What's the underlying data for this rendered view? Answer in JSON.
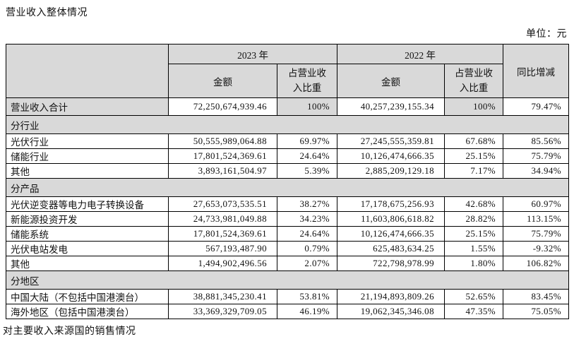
{
  "page": {
    "title": "营业收入整体情况",
    "unit_label": "单位：元",
    "footer": "对主要收入来源国的销售情况"
  },
  "table": {
    "header": {
      "year_2023": "2023 年",
      "year_2022": "2022 年",
      "amount": "金额",
      "pct_of_revenue": "占营业收入比重",
      "yoy": "同比增减"
    },
    "rows": [
      {
        "type": "total",
        "label": "营业收入合计",
        "a2023": "72,250,674,939.46",
        "p2023": "100%",
        "a2022": "40,257,239,155.34",
        "p2022": "100%",
        "yoy": "79.47%"
      },
      {
        "type": "section",
        "label": "分行业"
      },
      {
        "type": "data",
        "label": "光伏行业",
        "a2023": "50,555,989,064.88",
        "p2023": "69.97%",
        "a2022": "27,245,555,359.81",
        "p2022": "67.68%",
        "yoy": "85.56%"
      },
      {
        "type": "data",
        "label": "储能行业",
        "a2023": "17,801,524,369.61",
        "p2023": "24.64%",
        "a2022": "10,126,474,666.35",
        "p2022": "25.15%",
        "yoy": "75.79%"
      },
      {
        "type": "data",
        "label": "其他",
        "a2023": "3,893,161,504.97",
        "p2023": "5.39%",
        "a2022": "2,885,209,129.18",
        "p2022": "7.17%",
        "yoy": "34.94%"
      },
      {
        "type": "section",
        "label": "分产品"
      },
      {
        "type": "data",
        "label": "光伏逆变器等电力电子转换设备",
        "a2023": "27,653,073,535.51",
        "p2023": "38.27%",
        "a2022": "17,178,675,256.93",
        "p2022": "42.68%",
        "yoy": "60.97%"
      },
      {
        "type": "data",
        "label": "新能源投资开发",
        "a2023": "24,733,981,049.88",
        "p2023": "34.23%",
        "a2022": "11,603,806,618.82",
        "p2022": "28.82%",
        "yoy": "113.15%"
      },
      {
        "type": "data",
        "label": "储能系统",
        "a2023": "17,801,524,369.61",
        "p2023": "24.64%",
        "a2022": "10,126,474,666.35",
        "p2022": "25.15%",
        "yoy": "75.79%"
      },
      {
        "type": "data",
        "label": "光伏电站发电",
        "a2023": "567,193,487.90",
        "p2023": "0.79%",
        "a2022": "625,483,634.25",
        "p2022": "1.55%",
        "yoy": "-9.32%"
      },
      {
        "type": "data",
        "label": "其他",
        "a2023": "1,494,902,496.56",
        "p2023": "2.07%",
        "a2022": "722,798,978.99",
        "p2022": "1.80%",
        "yoy": "106.82%"
      },
      {
        "type": "section",
        "label": "分地区"
      },
      {
        "type": "data",
        "label": "中国大陆（不包括中国港澳台）",
        "a2023": "38,881,345,230.41",
        "p2023": "53.81%",
        "a2022": "21,194,893,809.26",
        "p2022": "52.65%",
        "yoy": "83.45%"
      },
      {
        "type": "data",
        "label": "海外地区（包括中国港澳台）",
        "a2023": "33,369,329,709.05",
        "p2023": "46.19%",
        "a2022": "19,062,345,346.08",
        "p2022": "47.35%",
        "yoy": "75.05%"
      }
    ],
    "colors": {
      "header_bg": "#d9d9d9",
      "border": "#000000",
      "text": "#111111",
      "background": "#ffffff"
    }
  }
}
